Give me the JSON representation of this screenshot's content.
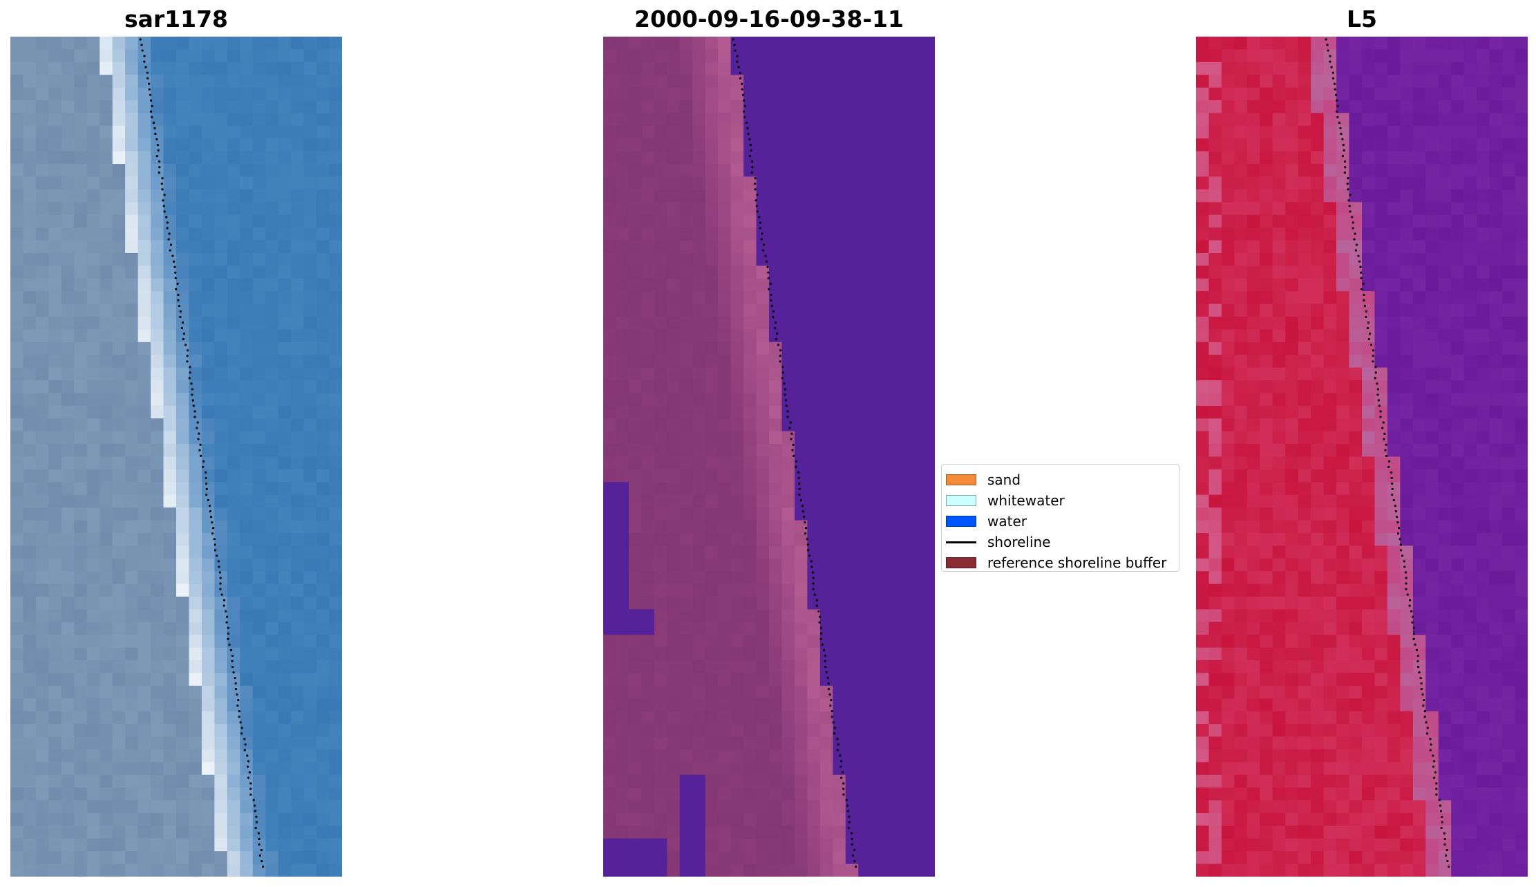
{
  "panels": [
    {
      "title": "sar1178",
      "kind": "rgb-image"
    },
    {
      "title": "2000-09-16-09-38-11",
      "kind": "classified-image"
    },
    {
      "title": "L5",
      "kind": "index-image"
    }
  ],
  "legend": {
    "items": [
      {
        "label": "sand",
        "color": "#f58a3a",
        "kind": "patch"
      },
      {
        "label": "whitewater",
        "color": "#ccffff",
        "kind": "patch"
      },
      {
        "label": "water",
        "color": "#0055ff",
        "kind": "patch"
      },
      {
        "label": "shoreline",
        "color": "#000000",
        "kind": "line"
      },
      {
        "label": "reference shoreline buffer",
        "color": "#8b2a33",
        "kind": "patch"
      }
    ]
  },
  "colors": {
    "water_blue": "#3b79b6",
    "surf_white": "#eef3f8",
    "land_grey": "#7f9ab8",
    "class_water": "#55229a",
    "class_land": "#8a3b78",
    "class_surf": "#b35a92",
    "index_land": "#c8163f",
    "index_water": "#6a1b9a",
    "shoreline": "#000000"
  }
}
